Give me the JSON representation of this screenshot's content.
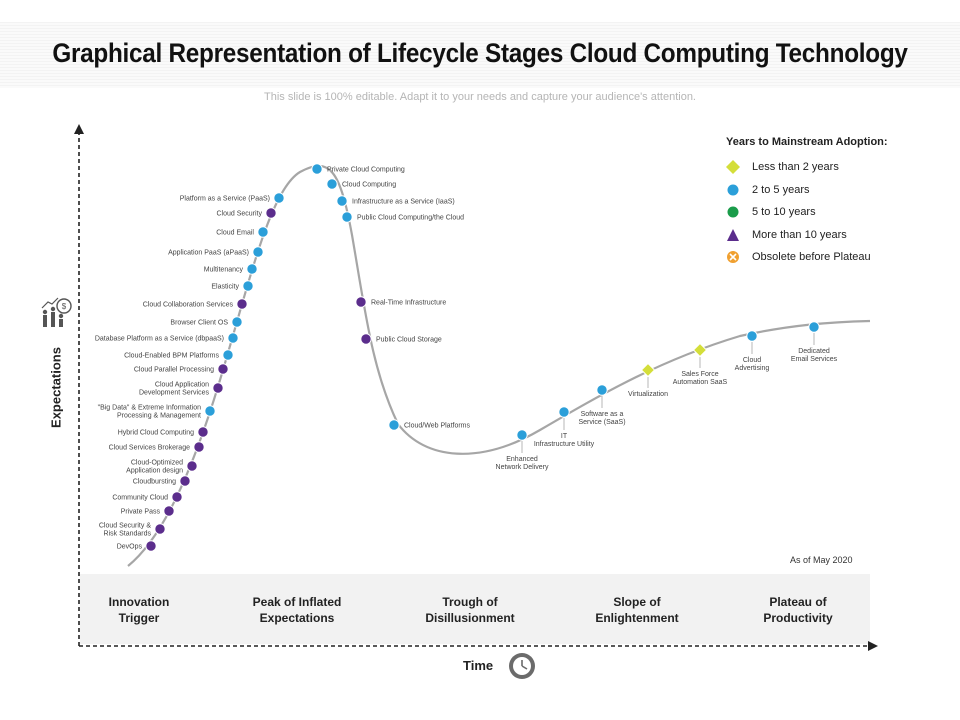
{
  "header": {
    "title": "Graphical Representation of Lifecycle Stages Cloud Computing Technology",
    "subtitle": "This slide is 100% editable. Adapt it to your needs and capture your audience's attention."
  },
  "colors": {
    "purple": "#5b2d8c",
    "blue": "#2b9fd9",
    "green": "#1a9c4a",
    "yellow": "#d4de3a",
    "orange": "#f0a030",
    "curve": "#a6a6a6"
  },
  "axes": {
    "y_label": "Expectations",
    "x_label": "Time",
    "y_icon": "growth-people-dollar-icon",
    "x_icon": "clock-icon"
  },
  "legend": {
    "title": "Years to Mainstream Adoption:",
    "items": [
      {
        "label": "Less than 2 years",
        "marker": "diamond",
        "color": "#d4de3a"
      },
      {
        "label": "2 to 5 years",
        "marker": "circle",
        "color": "#2b9fd9"
      },
      {
        "label": "5 to 10 years",
        "marker": "circle",
        "color": "#1a9c4a"
      },
      {
        "label": "More than 10 years",
        "marker": "triangle",
        "color": "#5b2d8c"
      },
      {
        "label": "Obsolete before Plateau",
        "marker": "x-circle",
        "color": "#f0a030"
      }
    ]
  },
  "as_of": "As of May 2020",
  "stages": [
    {
      "line1": "Innovation",
      "line2": "Trigger"
    },
    {
      "line1": "Peak of Inflated",
      "line2": "Expectations"
    },
    {
      "line1": "Trough of",
      "line2": "Disillusionment"
    },
    {
      "line1": "Slope of",
      "line2": "Enlightenment"
    },
    {
      "line1": "Plateau of",
      "line2": "Productivity"
    }
  ],
  "technologies": [
    {
      "lines": [
        "DevOps"
      ],
      "category": "more than 10 years"
    },
    {
      "lines": [
        "Cloud Security &",
        "Risk Standards"
      ],
      "category": "more than 10 years"
    },
    {
      "lines": [
        "Private Pass"
      ],
      "category": "more than 10 years"
    },
    {
      "lines": [
        "Community Cloud"
      ],
      "category": "more than 10 years"
    },
    {
      "lines": [
        "Cloudbursting"
      ],
      "category": "more than 10 years"
    },
    {
      "lines": [
        "Cloud-Optimized",
        "Application design"
      ],
      "category": "more than 10 years"
    },
    {
      "lines": [
        "Cloud Services Brokerage"
      ],
      "category": "more than 10 years"
    },
    {
      "lines": [
        "Hybrid Cloud Computing"
      ],
      "category": "more than 10 years"
    },
    {
      "lines": [
        "\"Big Data\" & Extreme Information",
        "Processing & Management"
      ],
      "category": "2 to 5 years"
    },
    {
      "lines": [
        "Cloud Application",
        "Development Services"
      ],
      "category": "more than 10 years"
    },
    {
      "lines": [
        "Cloud Parallel Processing"
      ],
      "category": "more than 10 years"
    },
    {
      "lines": [
        "Cloud-Enabled BPM Platforms"
      ],
      "category": "2 to 5 years"
    },
    {
      "lines": [
        "Database Platform as a Service (dbpaaS)"
      ],
      "category": "2 to 5 years"
    },
    {
      "lines": [
        "Browser Client OS"
      ],
      "category": "2 to 5 years"
    },
    {
      "lines": [
        "Cloud Collaboration Services"
      ],
      "category": "more than 10 years"
    },
    {
      "lines": [
        "Elasticity"
      ],
      "category": "2 to 5 years"
    },
    {
      "lines": [
        "Multitenancy"
      ],
      "category": "2 to 5 years"
    },
    {
      "lines": [
        "Application PaaS (aPaaS)"
      ],
      "category": "2 to 5 years"
    },
    {
      "lines": [
        "Cloud Email"
      ],
      "category": "2 to 5 years"
    },
    {
      "lines": [
        "Cloud Security"
      ],
      "category": "more than 10 years"
    },
    {
      "lines": [
        "Platform as a Service (PaaS)"
      ],
      "category": "2 to 5 years"
    },
    {
      "lines": [
        "Private Cloud Computing"
      ],
      "category": "2 to 5 years"
    },
    {
      "lines": [
        "Cloud Computing"
      ],
      "category": "2 to 5 years"
    },
    {
      "lines": [
        "Infrastructure as a Service (IaaS)"
      ],
      "category": "2 to 5 years"
    },
    {
      "lines": [
        "Public Cloud Computing/the Cloud"
      ],
      "category": "2 to 5 years"
    },
    {
      "lines": [
        "Real-Time Infrastructure"
      ],
      "category": "more than 10 years"
    },
    {
      "lines": [
        "Public Cloud Storage"
      ],
      "category": "more than 10 years"
    },
    {
      "lines": [
        "Cloud/Web Platforms"
      ],
      "category": "2 to 5 years"
    },
    {
      "lines": [
        "Enhanced",
        "Network Delivery"
      ],
      "category": "2 to 5 years"
    },
    {
      "lines": [
        "IT",
        "Infrastructure Utility"
      ],
      "category": "2 to 5 years"
    },
    {
      "lines": [
        "Software as a",
        "Service (SaaS)"
      ],
      "category": "2 to 5 years"
    },
    {
      "lines": [
        "Virtualization"
      ],
      "category": "less than 2 years"
    },
    {
      "lines": [
        "Sales Force",
        "Automation SaaS"
      ],
      "category": "less than 2 years"
    },
    {
      "lines": [
        "Cloud",
        "Advertising"
      ],
      "category": "2 to 5 years"
    },
    {
      "lines": [
        "Dedicated",
        "Email Services"
      ],
      "category": "2 to 5 years"
    }
  ]
}
